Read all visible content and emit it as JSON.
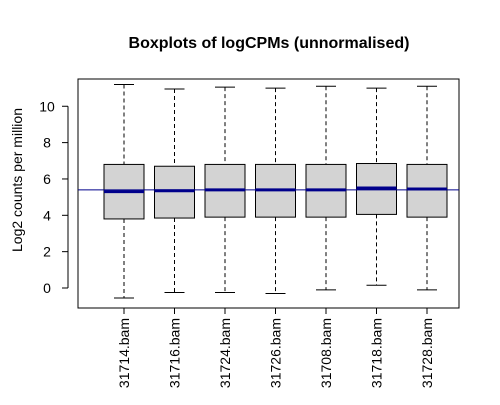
{
  "chart_data": {
    "type": "boxplot",
    "title": "Boxplots of logCPMs (unnormalised)",
    "ylabel": "Log2 counts per million",
    "xlabel": "",
    "categories": [
      "31714.bam",
      "31716.bam",
      "31724.bam",
      "31726.bam",
      "31708.bam",
      "31718.bam",
      "31728.bam"
    ],
    "ylim": [
      -1.1,
      11.5
    ],
    "yticks": [
      0,
      2,
      4,
      6,
      8,
      10
    ],
    "grid": false,
    "reference_line": 5.4,
    "colors": {
      "box_fill": "#d3d3d3",
      "median": "#00008b",
      "reference_line": "#00008b",
      "axis": "#000000"
    },
    "boxes": [
      {
        "category": "31714.bam",
        "min": -0.55,
        "q1": 3.8,
        "median": 5.3,
        "q3": 6.8,
        "max": 11.2
      },
      {
        "category": "31716.bam",
        "min": -0.25,
        "q1": 3.85,
        "median": 5.35,
        "q3": 6.7,
        "max": 10.95
      },
      {
        "category": "31724.bam",
        "min": -0.25,
        "q1": 3.9,
        "median": 5.4,
        "q3": 6.8,
        "max": 11.05
      },
      {
        "category": "31726.bam",
        "min": -0.3,
        "q1": 3.9,
        "median": 5.4,
        "q3": 6.8,
        "max": 11.0
      },
      {
        "category": "31708.bam",
        "min": -0.1,
        "q1": 3.9,
        "median": 5.4,
        "q3": 6.8,
        "max": 11.1
      },
      {
        "category": "31718.bam",
        "min": 0.15,
        "q1": 4.05,
        "median": 5.5,
        "q3": 6.85,
        "max": 11.0
      },
      {
        "category": "31728.bam",
        "min": -0.1,
        "q1": 3.9,
        "median": 5.45,
        "q3": 6.8,
        "max": 11.1
      }
    ]
  }
}
